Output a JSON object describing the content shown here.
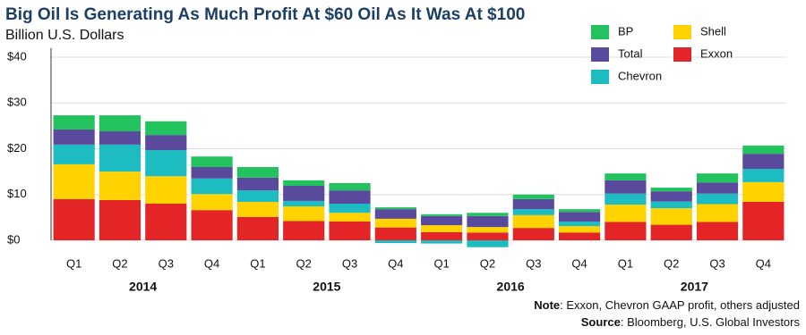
{
  "chart_data": {
    "type": "stacked_bar",
    "title": "Big Oil Is Generating As Much Profit At $60 Oil As It Was At $100",
    "subtitle": "Billion U.S. Dollars",
    "categories": [
      "Q1",
      "Q2",
      "Q3",
      "Q4",
      "Q1",
      "Q2",
      "Q3",
      "Q4",
      "Q1",
      "Q2",
      "Q3",
      "Q4",
      "Q1",
      "Q2",
      "Q3",
      "Q4"
    ],
    "groups": [
      "2014",
      "2015",
      "2016",
      "2017"
    ],
    "series": [
      {
        "name": "Exxon",
        "color": "#e42527",
        "values": [
          9.0,
          8.8,
          8.0,
          6.6,
          5.1,
          4.2,
          4.1,
          2.8,
          1.8,
          1.7,
          2.7,
          1.7,
          4.0,
          3.4,
          4.0,
          8.4
        ]
      },
      {
        "name": "Shell",
        "color": "#ffd200",
        "values": [
          7.6,
          6.2,
          6.0,
          3.5,
          3.3,
          3.2,
          1.9,
          1.9,
          1.5,
          1.2,
          2.8,
          1.4,
          3.8,
          3.6,
          3.9,
          4.3
        ]
      },
      {
        "name": "Chevron",
        "color": "#1cbcc0",
        "values": [
          4.3,
          5.9,
          5.7,
          3.4,
          2.5,
          1.2,
          2.0,
          -0.6,
          -0.7,
          -1.5,
          1.3,
          1.0,
          2.4,
          1.5,
          2.3,
          2.9
        ]
      },
      {
        "name": "Total",
        "color": "#5a4a9e",
        "values": [
          3.3,
          2.9,
          3.3,
          2.5,
          2.8,
          3.3,
          2.9,
          2.1,
          2.0,
          2.4,
          2.2,
          2.1,
          2.9,
          2.2,
          2.4,
          3.3
        ]
      },
      {
        "name": "BP",
        "color": "#22c35e",
        "values": [
          3.1,
          3.5,
          3.0,
          2.3,
          2.3,
          1.2,
          1.6,
          0.4,
          0.4,
          0.7,
          1.0,
          0.6,
          1.5,
          0.8,
          2.0,
          1.8
        ]
      }
    ],
    "ylim": [
      -2,
      42
    ],
    "yticks": [
      {
        "value": 0,
        "label": "$0"
      },
      {
        "value": 10,
        "label": "$10"
      },
      {
        "value": 20,
        "label": "$20"
      },
      {
        "value": 30,
        "label": "$30"
      },
      {
        "value": 40,
        "label": "$40"
      }
    ],
    "grid": true,
    "legend": "top-right",
    "note": {
      "label": "Note",
      "text": ": Exxon, Chevron GAAP profit, others adjusted"
    },
    "source": {
      "label": "Source",
      "text": ": Bloomberg, U.S. Global Investors"
    }
  }
}
